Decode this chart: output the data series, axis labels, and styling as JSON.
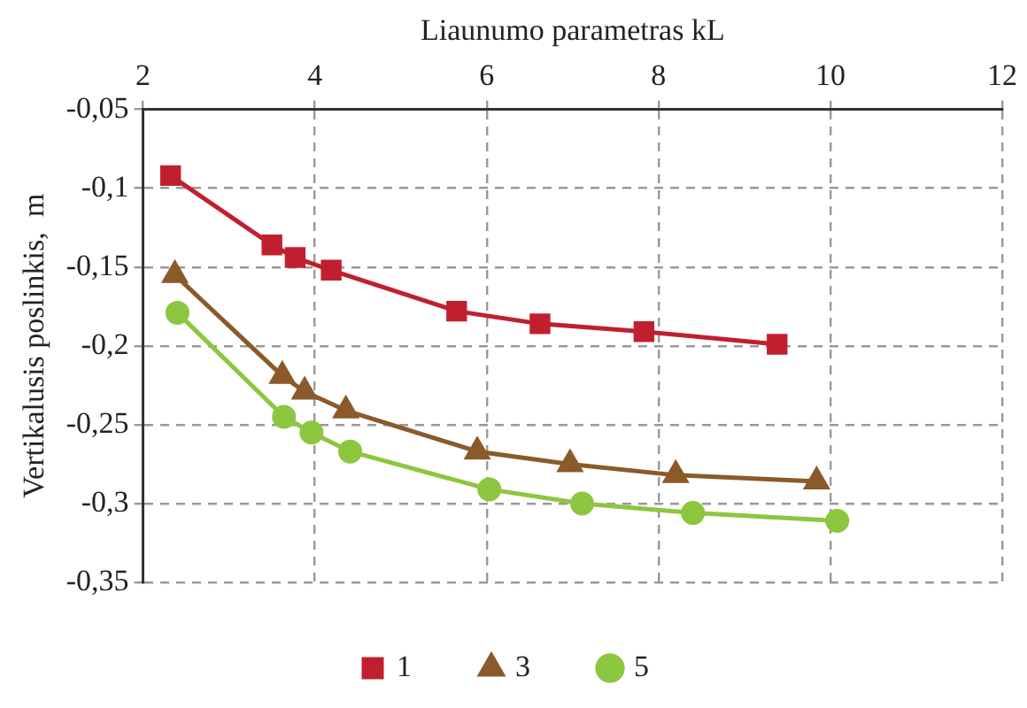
{
  "chart_data": {
    "type": "line",
    "xlabel": "Liaunumo parametras kL",
    "ylabel": "Vertikalusis poslinkis,  m",
    "xlim": [
      2,
      12
    ],
    "xticks": [
      2,
      4,
      6,
      8,
      10,
      12
    ],
    "ylim": [
      -0.35,
      -0.05
    ],
    "yticks": [
      {
        "value": -0.35,
        "label": "-0,35"
      },
      {
        "value": -0.3,
        "label": "-0,3"
      },
      {
        "value": -0.25,
        "label": "-0,25"
      },
      {
        "value": -0.2,
        "label": "-0,2"
      },
      {
        "value": -0.15,
        "label": "-0,15"
      },
      {
        "value": -0.1,
        "label": "-0,1"
      },
      {
        "value": -0.05,
        "label": "-0,05"
      }
    ],
    "grid": true,
    "legend": "bottom",
    "line_style": "solid",
    "series": [
      {
        "name": "1",
        "color": "#c0202e",
        "marker": "square",
        "x": [
          2.32,
          3.5,
          3.77,
          4.19,
          5.65,
          6.62,
          7.83,
          9.38
        ],
        "values": [
          -0.092,
          -0.136,
          -0.144,
          -0.152,
          -0.178,
          -0.186,
          -0.191,
          -0.199
        ]
      },
      {
        "name": "3",
        "color": "#8b5a2b",
        "marker": "triangle",
        "x": [
          2.37,
          3.62,
          3.88,
          4.36,
          5.89,
          6.97,
          8.2,
          9.84
        ],
        "values": [
          -0.155,
          -0.219,
          -0.229,
          -0.241,
          -0.267,
          -0.275,
          -0.282,
          -0.286
        ]
      },
      {
        "name": "5",
        "color": "#8dc63f",
        "marker": "circle",
        "x": [
          2.4,
          3.64,
          3.96,
          4.41,
          6.03,
          7.11,
          8.4,
          10.08
        ],
        "values": [
          -0.179,
          -0.245,
          -0.255,
          -0.267,
          -0.291,
          -0.3,
          -0.306,
          -0.311
        ]
      }
    ]
  }
}
